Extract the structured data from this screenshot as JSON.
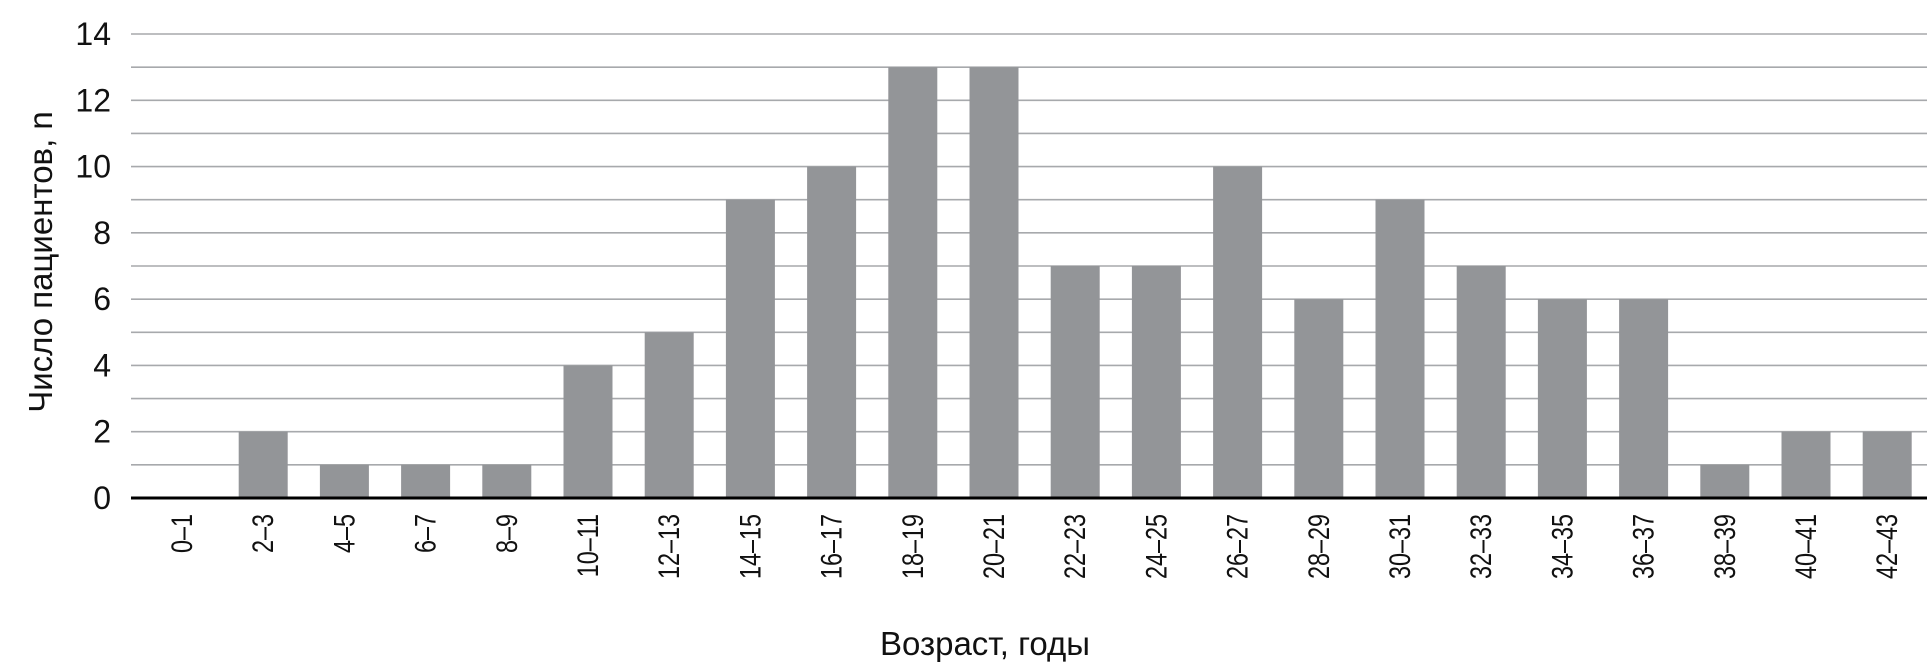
{
  "chart_data": {
    "type": "bar",
    "title": "",
    "xlabel": "Возраст, годы",
    "ylabel": "Число пациентов, n",
    "categories": [
      "0–1",
      "2–3",
      "4–5",
      "6–7",
      "8–9",
      "10–11",
      "12–13",
      "14–15",
      "16–17",
      "18–19",
      "20–21",
      "22–23",
      "24–25",
      "26–27",
      "28–29",
      "30–31",
      "32–33",
      "34–35",
      "36–37",
      "38–39",
      "40–41",
      "42–43"
    ],
    "values": [
      0,
      2,
      1,
      1,
      1,
      4,
      5,
      9,
      10,
      13,
      13,
      7,
      7,
      10,
      6,
      9,
      7,
      6,
      6,
      1,
      2,
      2
    ],
    "ylim": [
      0,
      14
    ],
    "yticks": [
      "0",
      "2",
      "4",
      "6",
      "8",
      "10",
      "12",
      "14"
    ],
    "grid": true,
    "legend": "none",
    "colors": {
      "bar": "#939598",
      "grid": "#a7a9ac",
      "axis": "#000000"
    }
  }
}
